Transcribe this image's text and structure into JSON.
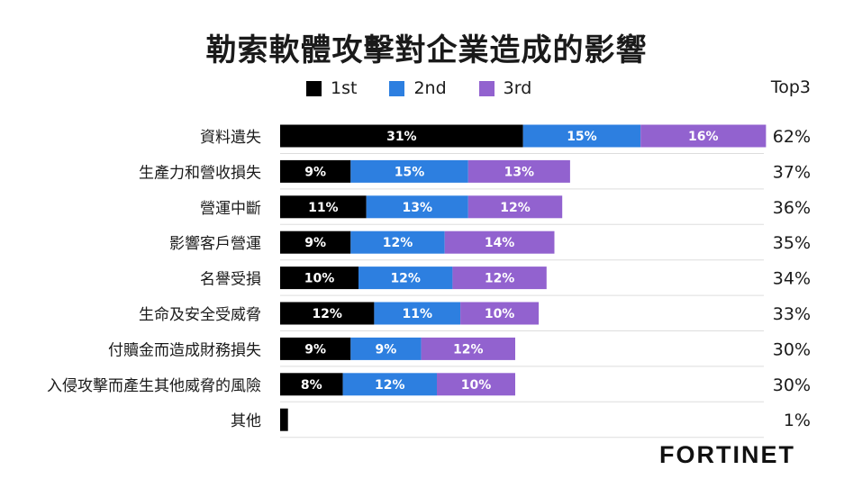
{
  "title": "勒索軟體攻擊對企業造成的影響",
  "top3_header": "Top3",
  "colors": {
    "first": "#000000",
    "second": "#2d7fe0",
    "third": "#9262cf",
    "grid": "#dddddd"
  },
  "legend": [
    {
      "label": "1st",
      "color": "#000000"
    },
    {
      "label": "2nd",
      "color": "#2d7fe0"
    },
    {
      "label": "3rd",
      "color": "#9262cf"
    }
  ],
  "brand": "FORTINET",
  "chart_data": {
    "type": "bar",
    "orientation": "horizontal",
    "stacked": true,
    "categories": [
      "資料遺失",
      "生產力和營收損失",
      "營運中斷",
      "影響客戶營運",
      "名譽受損",
      "生命及安全受威脅",
      "付贖金而造成財務損失",
      "入侵攻擊而產生其他威脅的風險",
      "其他"
    ],
    "series": [
      {
        "name": "1st",
        "values": [
          31,
          9,
          11,
          9,
          10,
          12,
          9,
          8,
          1
        ],
        "labels": [
          "31%",
          "9%",
          "11%",
          "9%",
          "10%",
          "12%",
          "9%",
          "8%",
          ""
        ]
      },
      {
        "name": "2nd",
        "values": [
          15,
          15,
          13,
          12,
          12,
          11,
          9,
          12,
          0
        ],
        "labels": [
          "15%",
          "15%",
          "13%",
          "12%",
          "12%",
          "11%",
          "9%",
          "12%",
          ""
        ]
      },
      {
        "name": "3rd",
        "values": [
          16,
          13,
          12,
          14,
          12,
          10,
          12,
          10,
          0
        ],
        "labels": [
          "16%",
          "13%",
          "12%",
          "14%",
          "12%",
          "10%",
          "12%",
          "10%",
          ""
        ]
      }
    ],
    "totals": [
      "62%",
      "37%",
      "36%",
      "35%",
      "34%",
      "33%",
      "30%",
      "30%",
      "1%"
    ],
    "xlim": [
      0,
      62
    ],
    "legend_position": "top"
  }
}
